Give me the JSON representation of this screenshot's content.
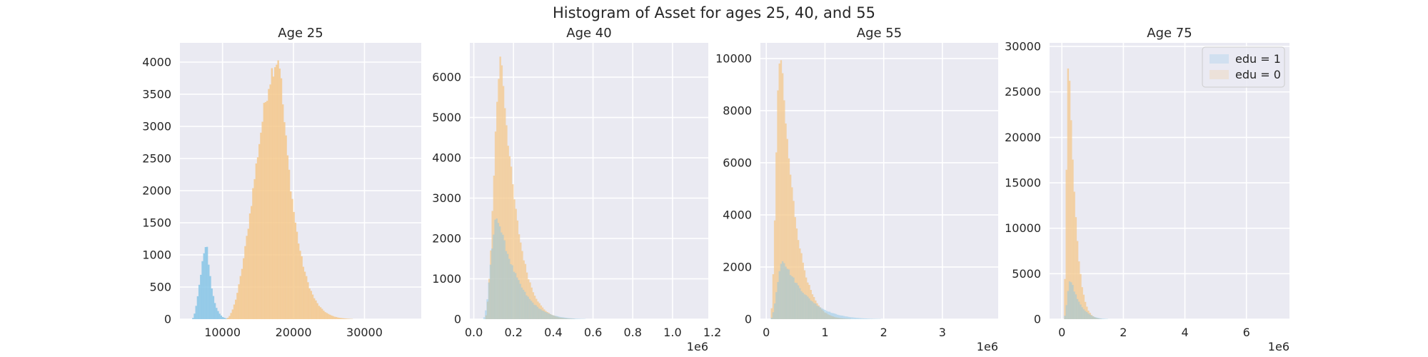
{
  "chart_data": {
    "suptitle": "Histogram of Asset for ages 25, 40, and 55",
    "colors": {
      "edu1": "#87c5e6",
      "edu0": "#f4c88c",
      "background": "#eaeaf2",
      "grid": "#ffffff"
    },
    "legend": {
      "placement": "upper right",
      "entries": [
        {
          "label": "edu = 1",
          "series": "edu1"
        },
        {
          "label": "edu = 0",
          "series": "edu0"
        }
      ]
    },
    "panels": [
      {
        "type": "histogram",
        "title": "Age 25",
        "xlim": [
          4000,
          38000
        ],
        "ylim": [
          0,
          4300
        ],
        "xticks": [
          10000,
          20000,
          30000
        ],
        "xtick_labels": [
          "10000",
          "20000",
          "30000"
        ],
        "yticks": [
          0,
          500,
          1000,
          1500,
          2000,
          2500,
          3000,
          3500,
          4000
        ],
        "ytick_labels": [
          "0",
          "500",
          "1000",
          "1500",
          "2000",
          "2500",
          "3000",
          "3500",
          "4000"
        ],
        "offset_label": "",
        "series": [
          {
            "key": "edu1",
            "start": 5500,
            "mode": 7700,
            "end": 12500,
            "peak": 1120,
            "alpha": 0.85
          },
          {
            "key": "edu0",
            "start": 10200,
            "mode": 17900,
            "end": 31500,
            "peak": 4060,
            "alpha": 0.85
          }
        ],
        "show_legend": false
      },
      {
        "type": "histogram",
        "title": "Age 40",
        "xlim": [
          -0.02,
          1.18
        ],
        "ylim": [
          0,
          6850
        ],
        "xticks": [
          0.0,
          0.2,
          0.4,
          0.6,
          0.8,
          1.0
        ],
        "xtick_labels": [
          "0.0",
          "0.2",
          "0.4",
          "0.6",
          "0.8",
          "1.0",
          "1.2"
        ],
        "xticks_full": [
          0.0,
          0.2,
          0.4,
          0.6,
          0.8,
          1.0,
          1.2
        ],
        "yticks": [
          0,
          1000,
          2000,
          3000,
          4000,
          5000,
          6000
        ],
        "ytick_labels": [
          "0",
          "1000",
          "2000",
          "3000",
          "4000",
          "5000",
          "6000"
        ],
        "offset_label": "1e6",
        "series": [
          {
            "key": "edu0",
            "start": 0.05,
            "mode": 0.135,
            "end": 0.62,
            "peak": 6500,
            "alpha": 0.75
          },
          {
            "key": "edu1",
            "start": 0.04,
            "mode": 0.115,
            "end": 0.75,
            "peak": 2560,
            "alpha": 0.45
          }
        ],
        "show_legend": false
      },
      {
        "type": "histogram",
        "title": "Age 55",
        "xlim": [
          -0.1,
          3.95
        ],
        "ylim": [
          0,
          10600
        ],
        "xticks": [
          0,
          1,
          2,
          3
        ],
        "xtick_labels": [
          "0",
          "1",
          "2",
          "3"
        ],
        "yticks": [
          0,
          2000,
          4000,
          6000,
          8000,
          10000
        ],
        "ytick_labels": [
          "0",
          "2000",
          "4000",
          "6000",
          "8000",
          "10000"
        ],
        "offset_label": "1e6",
        "series": [
          {
            "key": "edu0",
            "start": 0.05,
            "mode": 0.23,
            "end": 1.8,
            "peak": 10200,
            "alpha": 0.75
          },
          {
            "key": "edu1",
            "start": 0.05,
            "mode": 0.27,
            "end": 2.8,
            "peak": 2300,
            "alpha": 0.45
          }
        ],
        "show_legend": false
      },
      {
        "type": "histogram",
        "title": "Age 75",
        "xlim": [
          -0.4,
          7.4
        ],
        "ylim": [
          0,
          30400
        ],
        "xticks": [
          0,
          2,
          4,
          6
        ],
        "xtick_labels": [
          "0",
          "2",
          "4",
          "6"
        ],
        "yticks": [
          0,
          5000,
          10000,
          15000,
          20000,
          25000,
          30000
        ],
        "ytick_labels": [
          "0",
          "5000",
          "10000",
          "15000",
          "20000",
          "25000",
          "30000"
        ],
        "offset_label": "1e6",
        "series": [
          {
            "key": "edu0",
            "start": 0.02,
            "mode": 0.2,
            "end": 1.6,
            "peak": 28800,
            "alpha": 0.75
          },
          {
            "key": "edu1",
            "start": 0.02,
            "mode": 0.26,
            "end": 2.2,
            "peak": 4400,
            "alpha": 0.45
          }
        ],
        "show_legend": true
      }
    ]
  }
}
